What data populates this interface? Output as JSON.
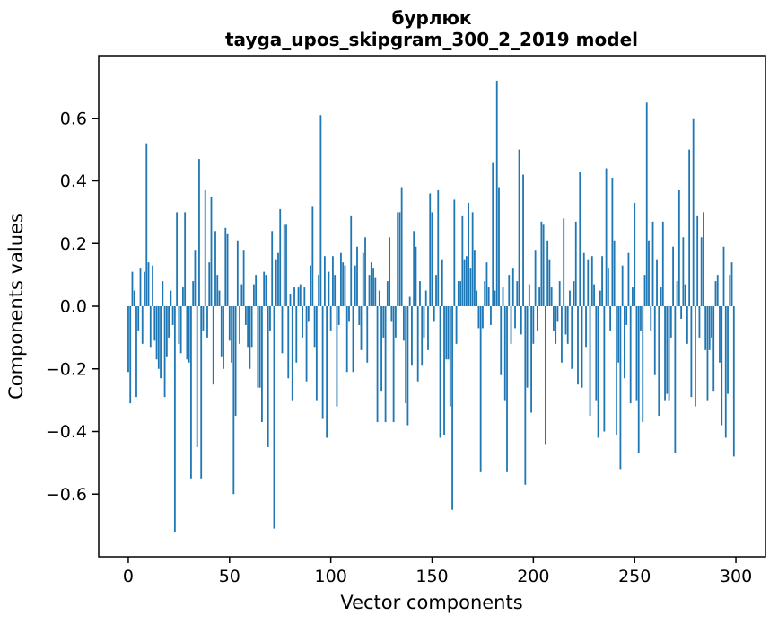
{
  "chart": {
    "title_word": "бурлюк",
    "title_model": "tayga_upos_skipgram_300_2_2019 model",
    "xlabel": "Vector components",
    "ylabel": "Components values"
  },
  "chart_data": {
    "type": "bar",
    "title": "бурлюк",
    "subtitle": "tayga_upos_skipgram_300_2_2019 model",
    "xlabel": "Vector components",
    "ylabel": "Components values",
    "bar_color": "#1f77b4",
    "grid": false,
    "legend": "none",
    "n_components": 300,
    "xlim": [
      -14.6,
      314.6
    ],
    "ylim": [
      -0.8,
      0.8
    ],
    "x_ticks": [
      0,
      50,
      100,
      150,
      200,
      250,
      300
    ],
    "x_tick_labels": [
      "0",
      "50",
      "100",
      "150",
      "200",
      "250",
      "300"
    ],
    "y_ticks": [
      0.6,
      0.4,
      0.2,
      0.0,
      -0.2,
      -0.4,
      -0.6
    ],
    "y_tick_labels": [
      "0.6",
      "0.4",
      "0.2",
      "0.0",
      "−0.2",
      "−0.4",
      "−0.6"
    ],
    "values": [
      -0.21,
      -0.31,
      0.11,
      0.05,
      -0.29,
      -0.08,
      0.12,
      -0.12,
      0.11,
      0.52,
      0.14,
      -0.13,
      0.13,
      -0.11,
      -0.17,
      -0.2,
      -0.23,
      0.08,
      -0.29,
      -0.16,
      -0.1,
      0.05,
      -0.06,
      -0.72,
      0.3,
      -0.12,
      -0.15,
      0.06,
      0.3,
      -0.17,
      -0.18,
      -0.55,
      0.08,
      0.18,
      -0.45,
      0.47,
      -0.55,
      -0.08,
      0.37,
      -0.1,
      0.14,
      0.35,
      -0.25,
      0.24,
      0.1,
      0.05,
      -0.16,
      -0.2,
      0.25,
      0.23,
      -0.11,
      -0.18,
      -0.6,
      -0.35,
      0.21,
      -0.12,
      0.07,
      0.18,
      -0.06,
      -0.13,
      -0.2,
      -0.13,
      0.07,
      0.1,
      -0.26,
      -0.26,
      -0.37,
      0.11,
      0.1,
      -0.45,
      -0.08,
      0.24,
      -0.71,
      0.15,
      0.17,
      0.31,
      -0.15,
      0.26,
      0.26,
      -0.23,
      0.04,
      -0.3,
      0.06,
      -0.18,
      0.06,
      0.07,
      -0.1,
      0.06,
      -0.24,
      -0.05,
      0.13,
      0.32,
      -0.13,
      -0.3,
      0.1,
      0.61,
      -0.36,
      0.16,
      -0.42,
      0.11,
      -0.08,
      0.16,
      0.1,
      -0.32,
      -0.06,
      0.17,
      0.14,
      0.13,
      -0.21,
      -0.05,
      0.29,
      -0.21,
      0.13,
      0.19,
      -0.06,
      -0.14,
      0.17,
      0.22,
      -0.18,
      0.1,
      0.14,
      0.12,
      0.09,
      -0.37,
      0.05,
      -0.27,
      -0.1,
      -0.37,
      0.08,
      0.22,
      -0.05,
      -0.37,
      -0.1,
      0.3,
      0.3,
      0.38,
      -0.11,
      -0.31,
      -0.38,
      0.03,
      -0.19,
      0.24,
      0.19,
      -0.24,
      0.08,
      -0.19,
      -0.1,
      0.05,
      -0.14,
      0.36,
      0.3,
      -0.05,
      0.1,
      0.37,
      -0.42,
      0.15,
      -0.41,
      -0.17,
      -0.17,
      -0.32,
      -0.65,
      0.34,
      -0.12,
      0.08,
      0.08,
      0.29,
      0.15,
      0.16,
      0.33,
      0.12,
      0.3,
      0.18,
      0.05,
      -0.07,
      -0.53,
      -0.07,
      0.08,
      0.14,
      0.06,
      -0.06,
      0.46,
      0.05,
      0.72,
      0.38,
      -0.22,
      0.06,
      -0.3,
      -0.53,
      0.1,
      -0.12,
      0.12,
      -0.07,
      0.08,
      0.5,
      -0.09,
      0.42,
      -0.57,
      -0.26,
      0.07,
      -0.34,
      -0.12,
      0.18,
      -0.08,
      0.06,
      0.27,
      0.26,
      -0.44,
      0.21,
      0.15,
      0.06,
      -0.08,
      -0.12,
      -0.05,
      0.08,
      -0.18,
      0.28,
      -0.09,
      -0.12,
      0.05,
      -0.2,
      0.08,
      0.27,
      -0.25,
      0.43,
      -0.26,
      0.17,
      -0.13,
      0.15,
      -0.35,
      0.16,
      0.07,
      -0.3,
      -0.42,
      0.05,
      0.16,
      -0.4,
      0.44,
      0.12,
      -0.08,
      0.41,
      0.21,
      -0.41,
      -0.18,
      -0.52,
      0.13,
      -0.23,
      -0.06,
      0.17,
      -0.31,
      0.06,
      0.33,
      -0.3,
      -0.47,
      -0.08,
      -0.37,
      0.1,
      0.65,
      0.21,
      -0.08,
      0.27,
      -0.22,
      0.15,
      -0.35,
      0.06,
      0.27,
      -0.3,
      -0.28,
      -0.3,
      -0.1,
      0.19,
      -0.47,
      0.08,
      0.37,
      -0.04,
      0.22,
      0.07,
      -0.12,
      0.5,
      -0.29,
      0.6,
      -0.32,
      0.29,
      -0.1,
      0.22,
      0.3,
      -0.14,
      -0.3,
      -0.14,
      -0.1,
      -0.27,
      0.08,
      0.1,
      -0.18,
      -0.38,
      0.19,
      -0.42,
      -0.28,
      0.1,
      0.14,
      -0.48
    ]
  }
}
